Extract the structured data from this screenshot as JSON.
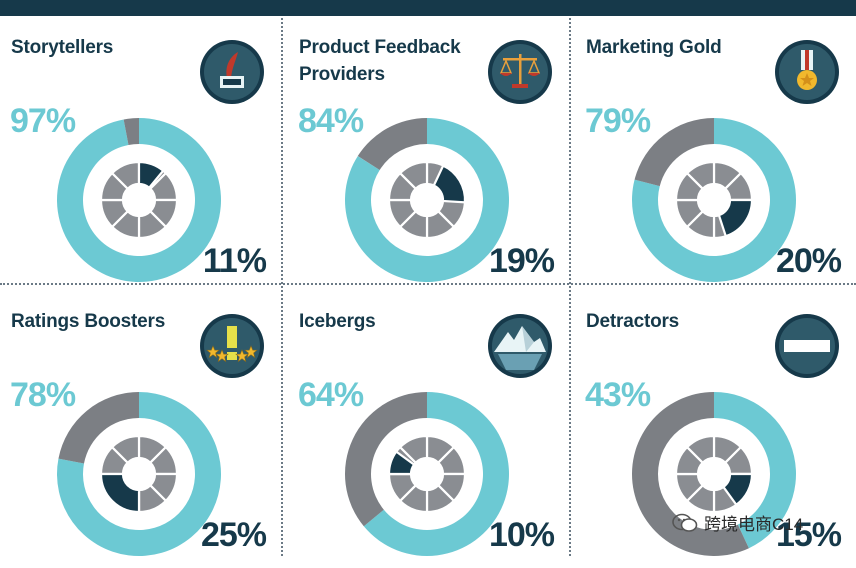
{
  "colors": {
    "accent": "#6cc9d3",
    "gray": "#7c7f84",
    "dark": "#16394a",
    "inner_gray": "#8a8d92",
    "badge": "#2f5a6a"
  },
  "chart_data": [
    {
      "type": "pie",
      "title": "Storytellers",
      "outer_value": 97,
      "outer_label": "97%",
      "inner_value": 11,
      "inner_label": "11%",
      "inner_offset": 0,
      "icon": "quill-ink-icon"
    },
    {
      "type": "pie",
      "title": "Product Feedback\nProviders",
      "outer_value": 84,
      "outer_label": "84%",
      "inner_value": 19,
      "inner_label": "19%",
      "inner_offset": 0.07,
      "icon": "scales-icon"
    },
    {
      "type": "pie",
      "title": "Marketing Gold",
      "outer_value": 79,
      "outer_label": "79%",
      "inner_value": 20,
      "inner_label": "20%",
      "inner_offset": 0.25,
      "icon": "medal-icon"
    },
    {
      "type": "pie",
      "title": "Ratings Boosters",
      "outer_value": 78,
      "outer_label": "78%",
      "inner_value": 25,
      "inner_label": "25%",
      "inner_offset": 0.5,
      "icon": "stars-exclamation-icon"
    },
    {
      "type": "pie",
      "title": "Icebergs",
      "outer_value": 64,
      "outer_label": "64%",
      "inner_value": 10,
      "inner_label": "10%",
      "inner_offset": 0.75,
      "icon": "iceberg-icon"
    },
    {
      "type": "pie",
      "title": "Detractors",
      "outer_value": 43,
      "outer_label": "43%",
      "inner_value": 15,
      "inner_label": "15%",
      "inner_offset": 0.25,
      "icon": "minus-bar-icon"
    }
  ],
  "watermark": {
    "text": "跨境电商C14",
    "icon": "wechat-icon"
  }
}
